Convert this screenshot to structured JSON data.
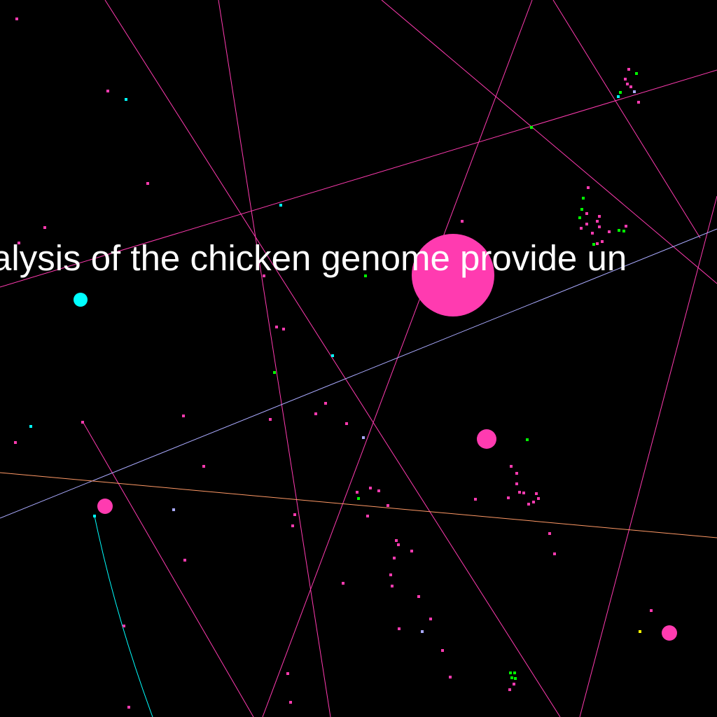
{
  "caption": "alysis of the chicken genome provide un",
  "colors": {
    "background": "#000000",
    "magenta": "#ff3bb0",
    "cyan": "#00ffff",
    "green": "#00ff00",
    "lavender": "#aaaaff",
    "orange": "#ff9966",
    "yellow": "#ffff00",
    "text": "#ffffff"
  }
}
